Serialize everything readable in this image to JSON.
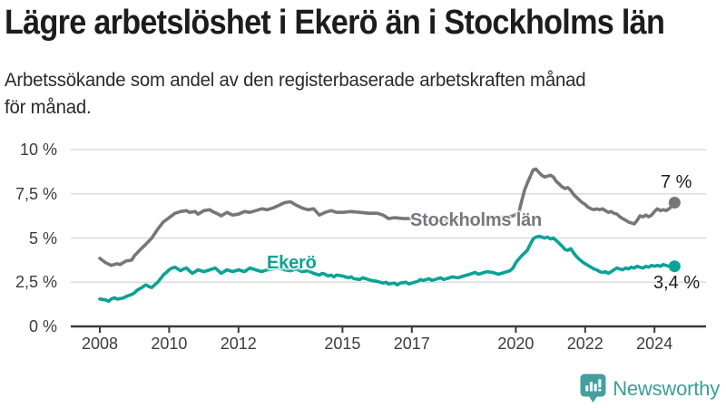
{
  "header": {
    "title": "Lägre arbetslöshet i Ekerö än i Stockholms län",
    "subtitle": "Arbetssökande som andel av den registerbaserade arbetskraften månad\nför månad."
  },
  "chart_data": {
    "type": "line",
    "title": "Lägre arbetslöshet i Ekerö än i Stockholms län",
    "subtitle": "Arbetssökande som andel av den registerbaserade arbetskraften månad för månad.",
    "grid": "horizontal-only",
    "legend_position": "inline-labels",
    "x_axis": {
      "range": [
        2008,
        2024.58
      ],
      "ticks": [
        2008,
        2010,
        2012,
        2015,
        2017,
        2020,
        2022,
        2024
      ],
      "tick_labels": [
        "2008",
        "2010",
        "2012",
        "2015",
        "2017",
        "2020",
        "2022",
        "2024"
      ]
    },
    "y_axis": {
      "range": [
        0,
        10
      ],
      "unit": "%",
      "ticks": [
        0,
        2.5,
        5,
        7.5,
        10
      ],
      "tick_labels": [
        "0 %",
        "2,5 %",
        "5 %",
        "7,5 %",
        "10 %"
      ]
    },
    "series": [
      {
        "name": "Stockholms län",
        "color": "#76767b",
        "end_label": "7 %",
        "end_value": 7.0,
        "points": [
          [
            2008.0,
            3.85
          ],
          [
            2008.17,
            3.6
          ],
          [
            2008.33,
            3.45
          ],
          [
            2008.5,
            3.55
          ],
          [
            2008.58,
            3.5
          ],
          [
            2008.75,
            3.7
          ],
          [
            2008.92,
            3.75
          ],
          [
            2009.0,
            4.0
          ],
          [
            2009.17,
            4.35
          ],
          [
            2009.33,
            4.65
          ],
          [
            2009.5,
            5.0
          ],
          [
            2009.67,
            5.5
          ],
          [
            2009.83,
            5.9
          ],
          [
            2010.0,
            6.15
          ],
          [
            2010.17,
            6.4
          ],
          [
            2010.33,
            6.5
          ],
          [
            2010.5,
            6.55
          ],
          [
            2010.58,
            6.45
          ],
          [
            2010.75,
            6.5
          ],
          [
            2010.83,
            6.35
          ],
          [
            2011.0,
            6.55
          ],
          [
            2011.17,
            6.6
          ],
          [
            2011.25,
            6.5
          ],
          [
            2011.42,
            6.35
          ],
          [
            2011.5,
            6.25
          ],
          [
            2011.67,
            6.45
          ],
          [
            2011.83,
            6.3
          ],
          [
            2012.0,
            6.35
          ],
          [
            2012.17,
            6.5
          ],
          [
            2012.33,
            6.45
          ],
          [
            2012.5,
            6.55
          ],
          [
            2012.67,
            6.65
          ],
          [
            2012.83,
            6.6
          ],
          [
            2013.0,
            6.7
          ],
          [
            2013.17,
            6.85
          ],
          [
            2013.33,
            7.0
          ],
          [
            2013.5,
            7.05
          ],
          [
            2013.67,
            6.85
          ],
          [
            2013.83,
            6.7
          ],
          [
            2014.0,
            6.6
          ],
          [
            2014.17,
            6.65
          ],
          [
            2014.33,
            6.3
          ],
          [
            2014.5,
            6.45
          ],
          [
            2014.67,
            6.55
          ],
          [
            2014.83,
            6.45
          ],
          [
            2015.0,
            6.45
          ],
          [
            2015.25,
            6.5
          ],
          [
            2015.5,
            6.45
          ],
          [
            2015.75,
            6.4
          ],
          [
            2016.0,
            6.4
          ],
          [
            2016.17,
            6.3
          ],
          [
            2016.33,
            6.1
          ],
          [
            2016.5,
            6.15
          ],
          [
            2016.75,
            6.1
          ],
          [
            2017.0,
            6.1
          ],
          [
            2017.25,
            6.05
          ],
          [
            2017.5,
            6.0
          ],
          [
            2017.75,
            6.05
          ],
          [
            2018.0,
            6.0
          ],
          [
            2018.25,
            6.05
          ],
          [
            2018.5,
            6.1
          ],
          [
            2018.75,
            6.1
          ],
          [
            2019.0,
            6.15
          ],
          [
            2019.25,
            6.2
          ],
          [
            2019.5,
            6.15
          ],
          [
            2019.75,
            6.2
          ],
          [
            2019.92,
            6.25
          ],
          [
            2020.08,
            6.4
          ],
          [
            2020.17,
            7.1
          ],
          [
            2020.25,
            7.7
          ],
          [
            2020.33,
            8.1
          ],
          [
            2020.42,
            8.5
          ],
          [
            2020.5,
            8.85
          ],
          [
            2020.58,
            8.9
          ],
          [
            2020.67,
            8.7
          ],
          [
            2020.75,
            8.55
          ],
          [
            2020.83,
            8.45
          ],
          [
            2020.92,
            8.5
          ],
          [
            2021.0,
            8.55
          ],
          [
            2021.08,
            8.45
          ],
          [
            2021.17,
            8.2
          ],
          [
            2021.25,
            8.05
          ],
          [
            2021.33,
            7.9
          ],
          [
            2021.42,
            7.8
          ],
          [
            2021.5,
            7.85
          ],
          [
            2021.58,
            7.7
          ],
          [
            2021.67,
            7.45
          ],
          [
            2021.75,
            7.3
          ],
          [
            2021.83,
            7.15
          ],
          [
            2021.92,
            7.0
          ],
          [
            2022.0,
            6.9
          ],
          [
            2022.08,
            6.75
          ],
          [
            2022.17,
            6.65
          ],
          [
            2022.25,
            6.6
          ],
          [
            2022.33,
            6.65
          ],
          [
            2022.42,
            6.6
          ],
          [
            2022.5,
            6.65
          ],
          [
            2022.58,
            6.55
          ],
          [
            2022.67,
            6.45
          ],
          [
            2022.75,
            6.5
          ],
          [
            2022.83,
            6.4
          ],
          [
            2022.92,
            6.35
          ],
          [
            2023.0,
            6.2
          ],
          [
            2023.08,
            6.1
          ],
          [
            2023.17,
            6.0
          ],
          [
            2023.25,
            5.9
          ],
          [
            2023.33,
            5.85
          ],
          [
            2023.42,
            5.8
          ],
          [
            2023.5,
            6.0
          ],
          [
            2023.58,
            6.25
          ],
          [
            2023.67,
            6.2
          ],
          [
            2023.75,
            6.3
          ],
          [
            2023.83,
            6.2
          ],
          [
            2023.92,
            6.3
          ],
          [
            2024.0,
            6.5
          ],
          [
            2024.08,
            6.65
          ],
          [
            2024.17,
            6.55
          ],
          [
            2024.25,
            6.6
          ],
          [
            2024.33,
            6.55
          ],
          [
            2024.42,
            6.65
          ],
          [
            2024.5,
            6.8
          ],
          [
            2024.58,
            7.0
          ]
        ]
      },
      {
        "name": "Ekerö",
        "color": "#0aa396",
        "end_label": "3,4 %",
        "end_value": 3.4,
        "points": [
          [
            2008.0,
            1.55
          ],
          [
            2008.17,
            1.5
          ],
          [
            2008.25,
            1.42
          ],
          [
            2008.33,
            1.55
          ],
          [
            2008.42,
            1.62
          ],
          [
            2008.5,
            1.55
          ],
          [
            2008.67,
            1.6
          ],
          [
            2008.83,
            1.75
          ],
          [
            2008.92,
            1.8
          ],
          [
            2009.0,
            1.9
          ],
          [
            2009.08,
            2.05
          ],
          [
            2009.17,
            2.15
          ],
          [
            2009.25,
            2.25
          ],
          [
            2009.33,
            2.35
          ],
          [
            2009.42,
            2.25
          ],
          [
            2009.5,
            2.2
          ],
          [
            2009.58,
            2.35
          ],
          [
            2009.67,
            2.5
          ],
          [
            2009.75,
            2.7
          ],
          [
            2009.83,
            2.9
          ],
          [
            2009.92,
            3.05
          ],
          [
            2010.0,
            3.2
          ],
          [
            2010.08,
            3.3
          ],
          [
            2010.17,
            3.35
          ],
          [
            2010.25,
            3.25
          ],
          [
            2010.33,
            3.15
          ],
          [
            2010.42,
            3.25
          ],
          [
            2010.5,
            3.3
          ],
          [
            2010.58,
            3.15
          ],
          [
            2010.67,
            3.0
          ],
          [
            2010.75,
            3.1
          ],
          [
            2010.83,
            3.2
          ],
          [
            2010.92,
            3.15
          ],
          [
            2011.0,
            3.1
          ],
          [
            2011.17,
            3.2
          ],
          [
            2011.33,
            3.3
          ],
          [
            2011.42,
            3.15
          ],
          [
            2011.5,
            3.0
          ],
          [
            2011.58,
            3.1
          ],
          [
            2011.67,
            3.2
          ],
          [
            2011.83,
            3.1
          ],
          [
            2012.0,
            3.2
          ],
          [
            2012.17,
            3.1
          ],
          [
            2012.33,
            3.3
          ],
          [
            2012.5,
            3.2
          ],
          [
            2012.67,
            3.1
          ],
          [
            2012.83,
            3.2
          ],
          [
            2013.0,
            3.25
          ],
          [
            2013.17,
            3.3
          ],
          [
            2013.33,
            3.2
          ],
          [
            2013.5,
            3.15
          ],
          [
            2013.67,
            3.25
          ],
          [
            2013.83,
            3.1
          ],
          [
            2014.0,
            3.15
          ],
          [
            2014.17,
            3.0
          ],
          [
            2014.33,
            2.9
          ],
          [
            2014.42,
            3.0
          ],
          [
            2014.5,
            2.95
          ],
          [
            2014.58,
            2.85
          ],
          [
            2014.67,
            2.9
          ],
          [
            2014.75,
            2.8
          ],
          [
            2014.83,
            2.9
          ],
          [
            2015.0,
            2.85
          ],
          [
            2015.17,
            2.75
          ],
          [
            2015.25,
            2.8
          ],
          [
            2015.33,
            2.7
          ],
          [
            2015.5,
            2.65
          ],
          [
            2015.58,
            2.75
          ],
          [
            2015.67,
            2.7
          ],
          [
            2015.83,
            2.6
          ],
          [
            2016.0,
            2.55
          ],
          [
            2016.17,
            2.45
          ],
          [
            2016.25,
            2.5
          ],
          [
            2016.33,
            2.4
          ],
          [
            2016.5,
            2.45
          ],
          [
            2016.58,
            2.35
          ],
          [
            2016.67,
            2.45
          ],
          [
            2016.83,
            2.5
          ],
          [
            2016.92,
            2.4
          ],
          [
            2017.0,
            2.45
          ],
          [
            2017.17,
            2.55
          ],
          [
            2017.25,
            2.65
          ],
          [
            2017.33,
            2.6
          ],
          [
            2017.5,
            2.7
          ],
          [
            2017.58,
            2.6
          ],
          [
            2017.67,
            2.65
          ],
          [
            2017.83,
            2.75
          ],
          [
            2017.92,
            2.65
          ],
          [
            2018.0,
            2.7
          ],
          [
            2018.17,
            2.8
          ],
          [
            2018.33,
            2.75
          ],
          [
            2018.5,
            2.85
          ],
          [
            2018.67,
            2.95
          ],
          [
            2018.83,
            3.05
          ],
          [
            2018.92,
            2.95
          ],
          [
            2019.0,
            3.0
          ],
          [
            2019.17,
            3.1
          ],
          [
            2019.33,
            3.05
          ],
          [
            2019.5,
            2.95
          ],
          [
            2019.67,
            3.05
          ],
          [
            2019.83,
            3.15
          ],
          [
            2019.92,
            3.3
          ],
          [
            2020.0,
            3.6
          ],
          [
            2020.08,
            3.8
          ],
          [
            2020.17,
            4.0
          ],
          [
            2020.25,
            4.15
          ],
          [
            2020.33,
            4.3
          ],
          [
            2020.42,
            4.65
          ],
          [
            2020.5,
            4.95
          ],
          [
            2020.58,
            5.05
          ],
          [
            2020.67,
            5.1
          ],
          [
            2020.75,
            5.05
          ],
          [
            2020.83,
            5.0
          ],
          [
            2020.92,
            5.05
          ],
          [
            2021.0,
            4.95
          ],
          [
            2021.08,
            5.0
          ],
          [
            2021.17,
            4.85
          ],
          [
            2021.25,
            4.7
          ],
          [
            2021.33,
            4.55
          ],
          [
            2021.42,
            4.35
          ],
          [
            2021.5,
            4.3
          ],
          [
            2021.58,
            4.4
          ],
          [
            2021.67,
            4.15
          ],
          [
            2021.75,
            3.95
          ],
          [
            2021.83,
            3.8
          ],
          [
            2021.92,
            3.65
          ],
          [
            2022.0,
            3.55
          ],
          [
            2022.08,
            3.45
          ],
          [
            2022.17,
            3.35
          ],
          [
            2022.25,
            3.25
          ],
          [
            2022.33,
            3.2
          ],
          [
            2022.42,
            3.1
          ],
          [
            2022.5,
            3.05
          ],
          [
            2022.58,
            3.1
          ],
          [
            2022.67,
            3.0
          ],
          [
            2022.75,
            3.1
          ],
          [
            2022.83,
            3.2
          ],
          [
            2022.92,
            3.3
          ],
          [
            2023.0,
            3.25
          ],
          [
            2023.08,
            3.2
          ],
          [
            2023.17,
            3.3
          ],
          [
            2023.25,
            3.25
          ],
          [
            2023.33,
            3.35
          ],
          [
            2023.42,
            3.3
          ],
          [
            2023.5,
            3.4
          ],
          [
            2023.58,
            3.35
          ],
          [
            2023.67,
            3.3
          ],
          [
            2023.75,
            3.4
          ],
          [
            2023.83,
            3.35
          ],
          [
            2023.92,
            3.45
          ],
          [
            2024.0,
            3.4
          ],
          [
            2024.08,
            3.45
          ],
          [
            2024.17,
            3.4
          ],
          [
            2024.25,
            3.5
          ],
          [
            2024.33,
            3.45
          ],
          [
            2024.42,
            3.4
          ],
          [
            2024.5,
            3.45
          ],
          [
            2024.58,
            3.4
          ]
        ]
      }
    ]
  },
  "branding": {
    "logo_text": "Newsworthy",
    "logo_color": "#3a9e9a"
  },
  "colors": {
    "background": "#ffffff",
    "title": "#1c1c1c",
    "subtitle": "#2a2a2a",
    "gridline": "#dcdcdc",
    "axis": "#3a3a3a",
    "tick_label": "#3c3c3c",
    "series_stockholm": "#76767b",
    "series_ekero": "#0aa396"
  }
}
